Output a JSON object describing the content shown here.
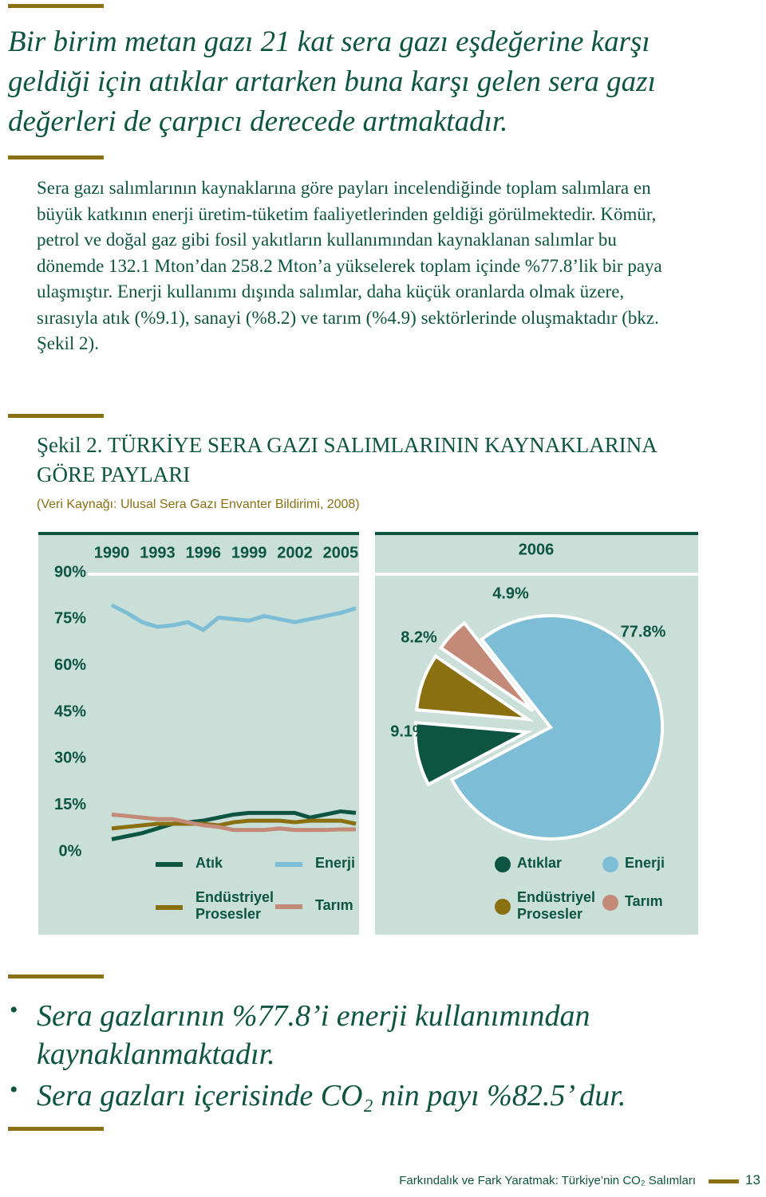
{
  "quote": "Bir birim metan gazı 21 kat sera gazı eşdeğerine karşı geldiği için atıklar artarken buna karşı gelen sera gazı değerleri de çarpıcı derecede artmaktadır.",
  "paragraph": "Sera gazı salımlarının kaynaklarına göre payları incelendiğinde toplam salımlara en büyük katkının enerji üretim-tüketim faaliyetlerinden geldiği görülmektedir. Kömür, petrol ve doğal gaz gibi fosil yakıtların kullanımından kaynaklanan salımlar bu dönemde 132.1 Mton’dan 258.2 Mton’a yükselerek toplam içinde %77.8’lik bir paya ulaşmıştır. Enerji kullanımı dışında salımlar, daha küçük oranlarda olmak üzere, sırasıyla atık (%9.1), sanayi (%8.2) ve tarım (%4.9) sektörlerinde oluşmaktadır (bkz. Şekil 2).",
  "figure": {
    "caption": "Şekil 2. TÜRKİYE SERA GAZI SALIMLARININ KAYNAKLARINA GÖRE PAYLARI",
    "source": "(Veri Kaynağı: Ulusal Sera Gazı Envanter Bildirimi, 2008)"
  },
  "chart_data": [
    {
      "type": "line",
      "x": [
        1990,
        1991,
        1992,
        1993,
        1994,
        1995,
        1996,
        1997,
        1998,
        1999,
        2000,
        2001,
        2002,
        2003,
        2004,
        2005,
        2006
      ],
      "xlim": [
        1990,
        2006
      ],
      "xticks": [
        1990,
        1993,
        1996,
        1999,
        2002,
        2005
      ],
      "ylim": [
        0,
        90
      ],
      "yticks": [
        {
          "value": 0,
          "label": "0%"
        },
        {
          "value": 15,
          "label": "15%"
        },
        {
          "value": 30,
          "label": "30%"
        },
        {
          "value": 45,
          "label": "45%"
        },
        {
          "value": 60,
          "label": "60%"
        },
        {
          "value": 75,
          "label": "75%"
        },
        {
          "value": 90,
          "label": "90%"
        }
      ],
      "series": [
        {
          "name": "Atık",
          "color": "#0d5540",
          "values": [
            4,
            5,
            6,
            7.5,
            9,
            9.5,
            10,
            11,
            12,
            12.5,
            12.5,
            12.5,
            12.5,
            11,
            12,
            13,
            12.5
          ]
        },
        {
          "name": "Enerji",
          "color": "#7dbdd6",
          "values": [
            79.5,
            77,
            74,
            72.5,
            73,
            74,
            71.5,
            75.5,
            75,
            74.5,
            76,
            75,
            74,
            75,
            76,
            77,
            78.5
          ]
        },
        {
          "name": "Endüstriyel Prosesler",
          "color": "#8a7010",
          "values": [
            7.5,
            8,
            8.5,
            9,
            9,
            9,
            9,
            8.5,
            9.5,
            10,
            10,
            10,
            9.5,
            10,
            10,
            10,
            9
          ]
        },
        {
          "name": "Tarım",
          "color": "#c48a78",
          "values": [
            12,
            11.5,
            11,
            10.5,
            10.5,
            9.5,
            8.5,
            8,
            7,
            7,
            7,
            7.5,
            7,
            7,
            7,
            7.2,
            7.2
          ]
        }
      ]
    },
    {
      "type": "pie",
      "title": "2006",
      "categories": [
        "Enerji",
        "Atıklar",
        "Endüstriyel Prosesler",
        "Tarım"
      ],
      "values": [
        77.8,
        9.1,
        8.2,
        4.9
      ],
      "value_labels": [
        "77.8%",
        "9.1%",
        "8.2%",
        "4.9%"
      ],
      "colors": [
        "#7dbdd6",
        "#0d5540",
        "#8a7010",
        "#c48a78"
      ]
    }
  ],
  "bullets": [
    "Sera gazlarının %77.8’i enerji kullanımından kaynaklanmaktadır.",
    "Sera gazları içerisinde CO₂ nin payı %82.5’ dur."
  ],
  "footer": {
    "text": "Farkındalık ve Fark Yaratmak: Türkiye’nin CO₂ Salımları",
    "page": "13"
  }
}
